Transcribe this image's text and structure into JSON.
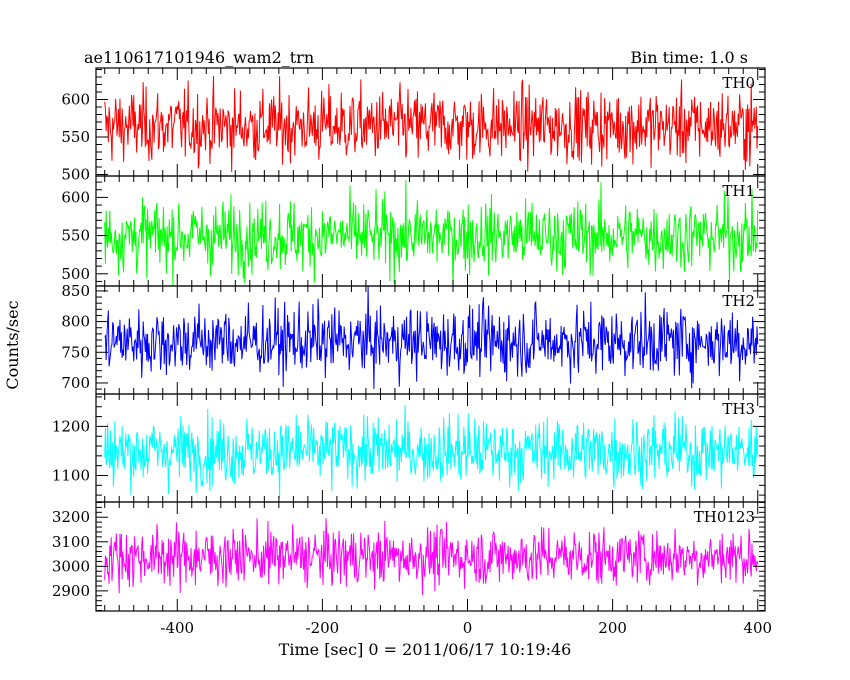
{
  "header": {
    "title": "ae110617101946_wam2_trn",
    "bin_time": "Bin time: 1.0 s"
  },
  "axes": {
    "ylabel": "Counts/sec",
    "xlabel": "Time [sec] 0 = 2011/06/17 10:19:46",
    "x_ticks": [
      "-400",
      "-200",
      "0",
      "200",
      "400"
    ]
  },
  "chart_data": {
    "type": "line",
    "title": "ae110617101946_wam2_trn",
    "subtitle": "Bin time: 1.0 s",
    "xlabel": "Time [sec] 0 = 2011/06/17 10:19:46",
    "ylabel": "Counts/sec",
    "xlim": [
      -512,
      410
    ],
    "x_range": [
      -500,
      400
    ],
    "x_step": 1,
    "grid": false,
    "panels": [
      {
        "name": "TH0",
        "color": "#ff0000",
        "ylim": [
          498,
          642
        ],
        "y_ticks": [
          500,
          550,
          600
        ],
        "y_tick_labels": [
          "500",
          "550",
          "600"
        ],
        "mean": 565,
        "spread": 24,
        "minor_step": 10
      },
      {
        "name": "TH1",
        "color": "#00ff00",
        "ylim": [
          484,
          628
        ],
        "y_ticks": [
          500,
          550,
          600
        ],
        "y_tick_labels": [
          "500",
          "550",
          "600"
        ],
        "mean": 550,
        "spread": 23,
        "minor_step": 10
      },
      {
        "name": "TH2",
        "color": "#0000ff",
        "ylim": [
          682,
          858
        ],
        "y_ticks": [
          700,
          750,
          800,
          850
        ],
        "y_tick_labels": [
          "700",
          "750",
          "800",
          "850"
        ],
        "mean": 768,
        "spread": 28,
        "minor_step": 10
      },
      {
        "name": "TH3",
        "color": "#00ffff",
        "ylim": [
          1046,
          1266
        ],
        "y_ticks": [
          1100,
          1200
        ],
        "y_tick_labels": [
          "1100",
          "1200"
        ],
        "mean": 1150,
        "spread": 34,
        "minor_step": 20
      },
      {
        "name": "TH0123",
        "color": "#ff00ff",
        "ylim": [
          2818,
          3262
        ],
        "y_ticks": [
          2900,
          3000,
          3100,
          3200
        ],
        "y_tick_labels": [
          "2900",
          "3000",
          "3100",
          "3200"
        ],
        "mean": 3040,
        "spread": 58,
        "minor_step": 20
      }
    ]
  }
}
